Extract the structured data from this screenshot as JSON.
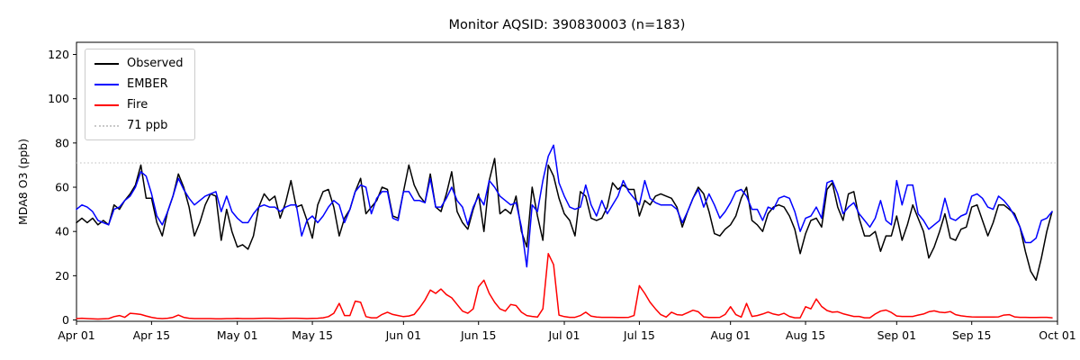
{
  "chart_data": {
    "type": "line",
    "title": "Monitor AQSID: 390830003 (n=183)",
    "ylabel": "MDA8 O3 (ppb)",
    "n_points": 183,
    "x_start": "Apr 01",
    "x_end": "Sep 30",
    "x_tick_labels": [
      "Apr 01",
      "Apr 15",
      "May 01",
      "May 15",
      "Jun 01",
      "Jun 15",
      "Jul 01",
      "Jul 15",
      "Aug 01",
      "Aug 15",
      "Sep 01",
      "Sep 15",
      "Oct 01"
    ],
    "x_tick_day_index": [
      0,
      14,
      30,
      44,
      61,
      75,
      91,
      105,
      122,
      136,
      153,
      167,
      183
    ],
    "yticks": [
      0,
      20,
      40,
      60,
      80,
      100,
      120
    ],
    "ylim": [
      -0.6,
      125.5
    ],
    "grid": false,
    "legend_position": "upper left",
    "threshold": {
      "label": "71 ppb",
      "value": 71,
      "color": "#c9c9c9",
      "style": "dotted"
    },
    "series": [
      {
        "name": "Observed",
        "color": "#000000",
        "values": [
          44,
          46,
          44,
          46,
          43,
          45,
          43,
          52,
          50,
          54,
          57,
          61,
          70,
          55,
          55,
          44,
          38,
          49,
          56,
          66,
          60,
          51,
          38,
          44,
          52,
          57,
          56,
          36,
          50,
          40,
          33,
          34,
          32,
          38,
          51,
          57,
          54,
          56,
          46,
          53,
          63,
          51,
          52,
          45,
          37,
          52,
          58,
          59,
          51,
          38,
          46,
          50,
          58,
          64,
          48,
          51,
          54,
          60,
          59,
          47,
          46,
          58,
          70,
          61,
          56,
          53,
          66,
          51,
          49,
          57,
          67,
          49,
          44,
          41,
          50,
          57,
          40,
          63,
          73,
          48,
          50,
          48,
          56,
          40,
          33,
          60,
          47,
          36,
          70,
          65,
          55,
          48,
          45,
          38,
          58,
          56,
          46,
          45,
          46,
          51,
          62,
          59,
          61,
          59,
          59,
          47,
          54,
          52,
          56,
          57,
          56,
          55,
          51,
          42,
          49,
          55,
          60,
          57,
          49,
          39,
          38,
          41,
          43,
          47,
          55,
          60,
          45,
          43,
          40,
          48,
          51,
          52,
          51,
          47,
          41,
          30,
          39,
          45,
          46,
          42,
          59,
          62,
          51,
          45,
          57,
          58,
          46,
          38,
          38,
          40,
          31,
          38,
          38,
          47,
          36,
          43,
          52,
          46,
          40,
          28,
          33,
          40,
          48,
          37,
          36,
          41,
          42,
          51,
          52,
          45,
          38,
          44,
          52,
          52,
          50,
          48,
          42,
          31,
          22,
          18,
          28,
          40,
          49
        ]
      },
      {
        "name": "EMBER",
        "color": "#0000ff",
        "values": [
          50,
          52,
          51,
          49,
          45,
          44,
          43,
          50,
          51,
          54,
          56,
          60,
          67,
          65,
          57,
          47,
          43,
          49,
          56,
          64,
          59,
          55,
          52,
          54,
          56,
          57,
          58,
          49,
          56,
          49,
          46,
          44,
          44,
          48,
          51,
          52,
          51,
          51,
          49,
          51,
          52,
          52,
          38,
          45,
          47,
          44,
          47,
          51,
          54,
          52,
          44,
          50,
          58,
          61,
          60,
          48,
          55,
          58,
          58,
          46,
          45,
          58,
          58,
          54,
          54,
          53,
          64,
          51,
          51,
          55,
          60,
          54,
          51,
          43,
          51,
          56,
          52,
          63,
          60,
          56,
          54,
          52,
          53,
          42,
          24,
          52,
          49,
          63,
          74,
          79,
          62,
          56,
          51,
          50,
          51,
          61,
          52,
          47,
          54,
          48,
          52,
          56,
          63,
          58,
          55,
          52,
          63,
          55,
          53,
          52,
          52,
          52,
          50,
          44,
          49,
          55,
          59,
          51,
          57,
          52,
          46,
          49,
          53,
          58,
          59,
          56,
          50,
          50,
          45,
          51,
          50,
          55,
          56,
          55,
          49,
          40,
          46,
          47,
          51,
          46,
          62,
          63,
          57,
          48,
          51,
          53,
          48,
          45,
          42,
          46,
          54,
          45,
          43,
          63,
          52,
          61,
          61,
          48,
          45,
          41,
          43,
          45,
          55,
          46,
          45,
          47,
          48,
          56,
          57,
          55,
          51,
          50,
          56,
          54,
          51,
          47,
          42,
          35,
          35,
          37,
          45,
          46,
          49
        ]
      },
      {
        "name": "Fire",
        "color": "#ff0000",
        "values": [
          0.6,
          0.8,
          0.6,
          0.5,
          0.4,
          0.5,
          0.6,
          1.5,
          2,
          1.2,
          3,
          2.8,
          2.5,
          1.8,
          1.2,
          0.8,
          0.6,
          0.8,
          1.2,
          2.2,
          1.2,
          0.8,
          0.6,
          0.6,
          0.6,
          0.6,
          0.5,
          0.5,
          0.6,
          0.6,
          0.7,
          0.6,
          0.6,
          0.6,
          0.7,
          0.8,
          0.8,
          0.7,
          0.6,
          0.7,
          0.8,
          0.8,
          0.7,
          0.6,
          0.7,
          0.8,
          1,
          1.5,
          3,
          7.5,
          2,
          2,
          8.5,
          8,
          1.5,
          1,
          1,
          2.5,
          3.5,
          2.5,
          2,
          1.5,
          1.8,
          2.5,
          5.5,
          9,
          13.5,
          12,
          14,
          11.5,
          10,
          7,
          4,
          3,
          5,
          15,
          18,
          12,
          8,
          5,
          4,
          7,
          6.5,
          3.5,
          2,
          1.6,
          1.3,
          5,
          30,
          25,
          2.2,
          1.5,
          1.2,
          1.2,
          2,
          3.5,
          1.7,
          1.3,
          1.2,
          1.2,
          1.2,
          1.1,
          1.1,
          1.2,
          2,
          15.5,
          12,
          8,
          5,
          2.4,
          1.3,
          3.5,
          2.4,
          2.2,
          3.3,
          4.4,
          3.7,
          1.4,
          1.1,
          1.1,
          1.2,
          2.5,
          6,
          2.4,
          1.3,
          7.5,
          1.6,
          2,
          2.7,
          3.6,
          2.7,
          2.2,
          3,
          1.6,
          1,
          1,
          6,
          5,
          9.5,
          6.1,
          4.3,
          3.5,
          3.7,
          2.8,
          2.2,
          1.6,
          1.6,
          1,
          1,
          2.7,
          4,
          4.5,
          3.4,
          1.8,
          1.6,
          1.6,
          1.6,
          2.2,
          2.7,
          3.7,
          4.1,
          3.5,
          3.3,
          3.8,
          2.4,
          1.9,
          1.6,
          1.4,
          1.3,
          1.3,
          1.3,
          1.3,
          1.4,
          2.2,
          2.4,
          1.4,
          1.2,
          1.2,
          1.1,
          1.1,
          1.2,
          1.2,
          1
        ]
      }
    ]
  }
}
